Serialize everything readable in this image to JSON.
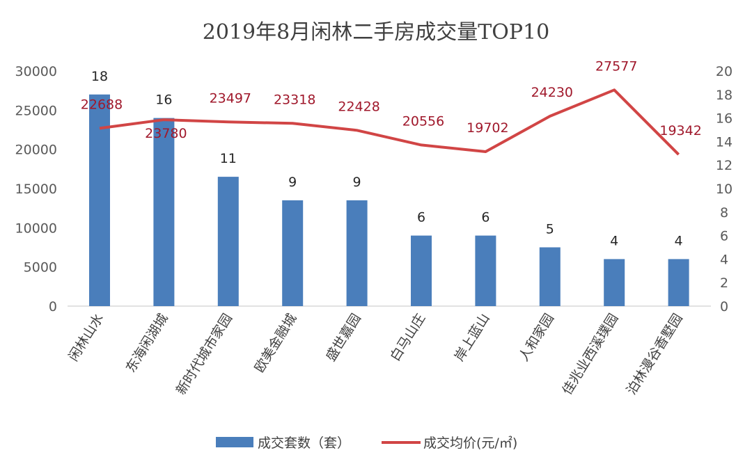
{
  "chart_data": {
    "type": "bar+line",
    "title": "2019年8月闲林二手房成交量TOP10",
    "categories": [
      "闲林山水",
      "东海闲湖城",
      "新时代城市家园",
      "欧美金融城",
      "盛世嘉园",
      "白马山庄",
      "岸上蓝山",
      "人和家园",
      "佳兆业西溪璞园",
      "泊林漫谷香墅园"
    ],
    "series": [
      {
        "name": "成交套数（套）",
        "type": "bar",
        "axis": "right",
        "color": "#4a7ebb",
        "values": [
          18,
          16,
          11,
          9,
          9,
          6,
          6,
          5,
          4,
          4
        ]
      },
      {
        "name": "成交均价(元/㎡)",
        "type": "line",
        "axis": "left",
        "color": "#d14545",
        "values": [
          22688,
          23780,
          23497,
          23318,
          22428,
          20556,
          19702,
          24230,
          27577,
          19342
        ]
      }
    ],
    "left_axis": {
      "ylim": [
        0,
        30000
      ],
      "ticks": [
        "0",
        "5000",
        "10000",
        "15000",
        "20000",
        "25000",
        "30000"
      ]
    },
    "right_axis": {
      "ylim": [
        0,
        20
      ],
      "ticks": [
        "0",
        "2",
        "4",
        "6",
        "8",
        "10",
        "12",
        "14",
        "16",
        "18",
        "20"
      ]
    },
    "grid": false,
    "legend_position": "bottom"
  }
}
